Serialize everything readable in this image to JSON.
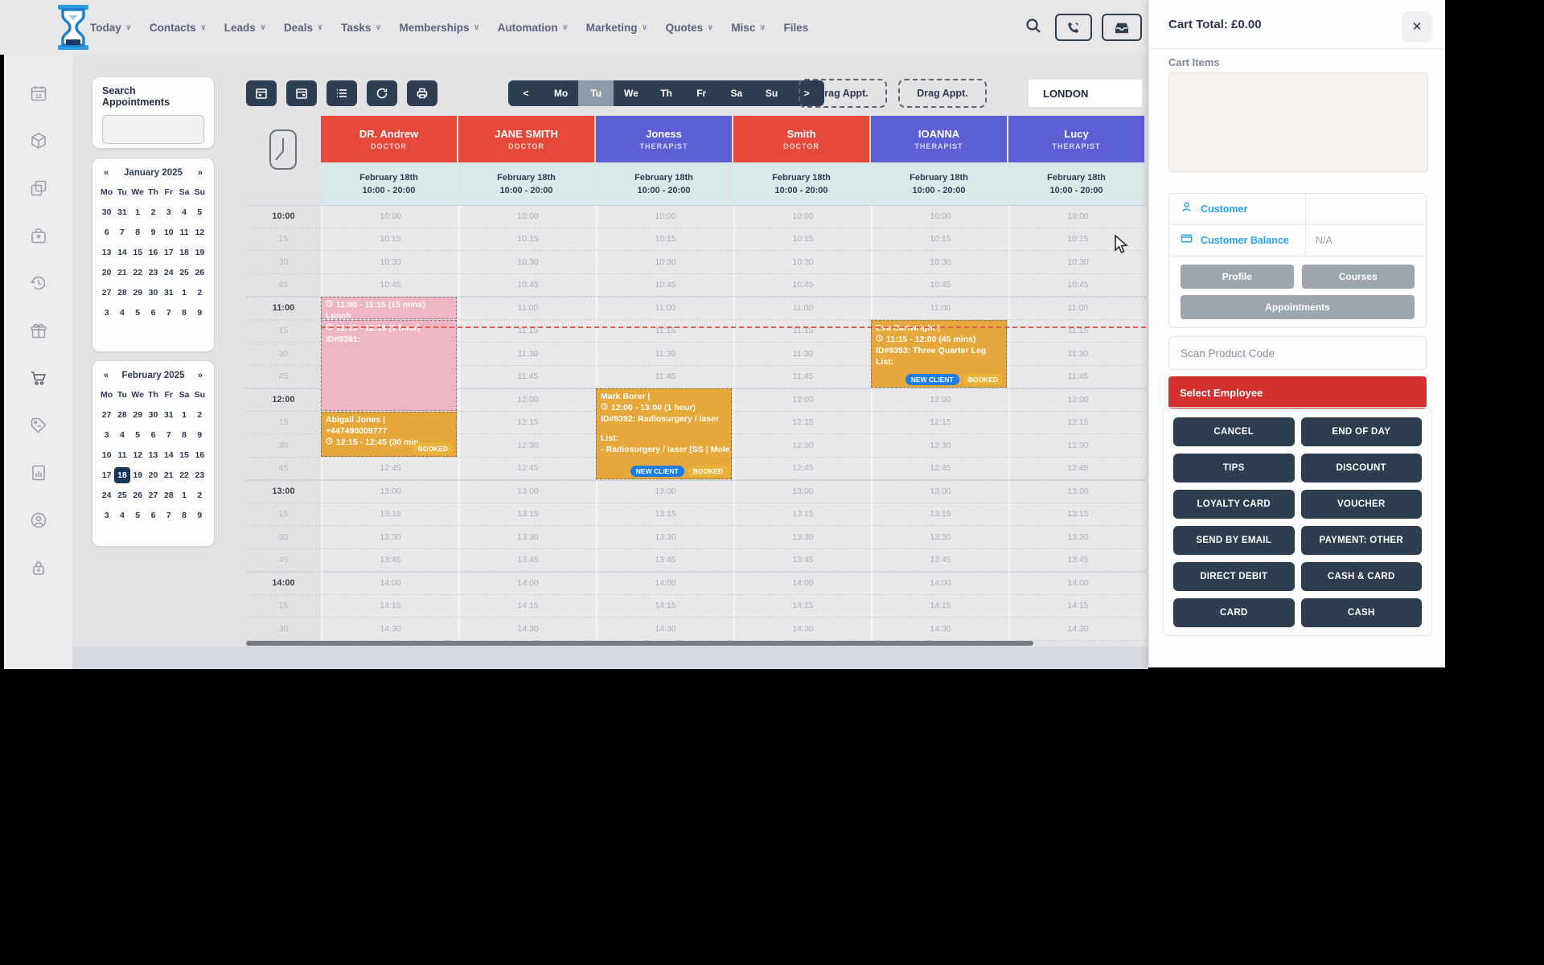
{
  "header": {
    "caret_glyph": "∨",
    "nav": [
      {
        "label": "Today",
        "dropdown": true
      },
      {
        "label": "Contacts",
        "dropdown": true
      },
      {
        "label": "Leads",
        "dropdown": true
      },
      {
        "label": "Deals",
        "dropdown": true
      },
      {
        "label": "Tasks",
        "dropdown": true
      },
      {
        "label": "Memberships",
        "dropdown": true
      },
      {
        "label": "Automation",
        "dropdown": true
      },
      {
        "label": "Marketing",
        "dropdown": true
      },
      {
        "label": "Quotes",
        "dropdown": true
      },
      {
        "label": "Misc",
        "dropdown": true
      },
      {
        "label": "Files",
        "dropdown": false
      }
    ],
    "icons": [
      "search-icon",
      "phone-icon",
      "inbox-icon"
    ]
  },
  "sidebar": {
    "icons": [
      "calendar-icon",
      "package-icon",
      "copy-icon",
      "bag-icon",
      "history-icon",
      "gift-icon",
      "cart-icon",
      "tag-icon",
      "report-icon",
      "account-icon",
      "lock-icon"
    ],
    "active": "cart-icon"
  },
  "search_panel": {
    "title": "Search Appointments",
    "input_value": ""
  },
  "mini_calendars": [
    {
      "month_label": "January 2025",
      "prev_glyph": "«",
      "next_glyph": "»",
      "day_names": [
        "Mo",
        "Tu",
        "We",
        "Th",
        "Fr",
        "Sa",
        "Su"
      ],
      "rows": [
        [
          30,
          31,
          1,
          2,
          3,
          4,
          5
        ],
        [
          6,
          7,
          8,
          9,
          10,
          11,
          12
        ],
        [
          13,
          14,
          15,
          16,
          17,
          18,
          19
        ],
        [
          20,
          21,
          22,
          23,
          24,
          25,
          26
        ],
        [
          27,
          28,
          29,
          30,
          31,
          1,
          2
        ],
        [
          3,
          4,
          5,
          6,
          7,
          8,
          9
        ]
      ],
      "selected": null
    },
    {
      "month_label": "February 2025",
      "prev_glyph": "«",
      "next_glyph": "»",
      "day_names": [
        "Mo",
        "Tu",
        "We",
        "Th",
        "Fr",
        "Sa",
        "Su"
      ],
      "rows": [
        [
          27,
          28,
          29,
          30,
          31,
          1,
          2
        ],
        [
          3,
          4,
          5,
          6,
          7,
          8,
          9
        ],
        [
          10,
          11,
          12,
          13,
          14,
          15,
          16
        ],
        [
          17,
          18,
          19,
          20,
          21,
          22,
          23
        ],
        [
          24,
          25,
          26,
          27,
          28,
          1,
          2
        ],
        [
          3,
          4,
          5,
          6,
          7,
          8,
          9
        ]
      ],
      "selected": {
        "row": 3,
        "col": 1
      }
    }
  ],
  "toolbar": {
    "icon_buttons": [
      "calendar-day-icon",
      "calendar-month-icon",
      "agenda-icon",
      "refresh-icon",
      "print-icon"
    ],
    "week_nav": {
      "prev": "<",
      "days": [
        "Mo",
        "Tu",
        "We",
        "Th",
        "Fr",
        "Sa",
        "Su"
      ],
      "active": "Tu",
      "next": ">"
    },
    "drag_buttons": [
      "Drag Appt.",
      "Drag Appt."
    ],
    "location": "LONDON"
  },
  "schedule": {
    "staff": [
      {
        "name": "DR. Andrew",
        "role": "DOCTOR",
        "color": "#e6493a"
      },
      {
        "name": "JANE SMITH",
        "role": "DOCTOR",
        "color": "#e6493a"
      },
      {
        "name": "Joness",
        "role": "THERAPIST",
        "color": "#5c5ed4"
      },
      {
        "name": "Smith",
        "role": "DOCTOR",
        "color": "#e6493a"
      },
      {
        "name": "IOANNA",
        "role": "THERAPIST",
        "color": "#5c5ed4"
      },
      {
        "name": "Lucy",
        "role": "THERAPIST",
        "color": "#5c5ed4"
      }
    ],
    "column_date": "February 18th",
    "column_hours": "10:00 - 20:00",
    "rows": [
      {
        "left": "10:00",
        "cell": "10:00",
        "hour": true
      },
      {
        "left": "15",
        "cell": "10:15",
        "hour": false
      },
      {
        "left": "30",
        "cell": "10:30",
        "hour": false
      },
      {
        "left": "45",
        "cell": "10:45",
        "hour": false
      },
      {
        "left": "11:00",
        "cell": "11:00",
        "hour": true
      },
      {
        "left": "15",
        "cell": "11:15",
        "hour": false
      },
      {
        "left": "30",
        "cell": "11:30",
        "hour": false
      },
      {
        "left": "45",
        "cell": "11:45",
        "hour": false
      },
      {
        "left": "12:00",
        "cell": "12:00",
        "hour": true
      },
      {
        "left": "15",
        "cell": "12:15",
        "hour": false
      },
      {
        "left": "30",
        "cell": "12:30",
        "hour": false
      },
      {
        "left": "45",
        "cell": "12:45",
        "hour": false
      },
      {
        "left": "13:00",
        "cell": "13:00",
        "hour": true
      },
      {
        "left": "15",
        "cell": "13:15",
        "hour": false
      },
      {
        "left": "30",
        "cell": "13:30",
        "hour": false
      },
      {
        "left": "45",
        "cell": "13:45",
        "hour": false
      },
      {
        "left": "14:00",
        "cell": "14:00",
        "hour": true
      },
      {
        "left": "15",
        "cell": "14:15",
        "hour": false
      },
      {
        "left": "30",
        "cell": "14:30",
        "hour": false
      }
    ],
    "appointments": [
      {
        "column": 0,
        "row_start": 4,
        "row_span": 1,
        "kind": "pink",
        "lines": [
          {
            "clock": true,
            "text": "11:00 - 11:15 (15 mins)"
          },
          {
            "clock": false,
            "text": "Lunch"
          }
        ],
        "badges": []
      },
      {
        "column": 0,
        "row_start": 5,
        "row_span": 4,
        "kind": "pink",
        "lines": [
          {
            "clock": true,
            "text": "11:15 - 12:15 (1 hour)"
          },
          {
            "clock": false,
            "text": "ID#9391:"
          }
        ],
        "badges": []
      },
      {
        "column": 0,
        "row_start": 9,
        "row_span": 2,
        "kind": "orange",
        "lines": [
          {
            "clock": false,
            "text": "Abigail Jones |"
          },
          {
            "clock": false,
            "text": "+447490009777"
          },
          {
            "clock": true,
            "text": "12:15 - 12:45 (30 min"
          }
        ],
        "badges": [
          {
            "label": "BOOKED",
            "type": "booked"
          }
        ]
      },
      {
        "column": 2,
        "row_start": 8,
        "row_span": 4,
        "kind": "orange",
        "lines": [
          {
            "clock": false,
            "text": "Mark Borer |"
          },
          {
            "clock": true,
            "text": "12:00 - 13:00 (1 hour)"
          },
          {
            "clock": false,
            "text": "ID#9392: Radiosurgery / laser"
          },
          {
            "clock": false,
            "text": ""
          },
          {
            "clock": false,
            "text": "List:"
          },
          {
            "clock": false,
            "text": "- Radiosurgery / laser [SS | Mole Removal]"
          }
        ],
        "badges": [
          {
            "label": "NEW CLIENT",
            "type": "new-client"
          },
          {
            "label": "BOOKED",
            "type": "booked"
          }
        ]
      },
      {
        "column": 4,
        "row_start": 5,
        "row_span": 3,
        "kind": "orange",
        "lines": [
          {
            "clock": false,
            "text": "Eva Cartwright |"
          },
          {
            "clock": true,
            "text": "11:15 - 12:00 (45 mins)"
          },
          {
            "clock": false,
            "text": "ID#9393: Three Quarter Leg"
          },
          {
            "clock": false,
            "text": "List:"
          }
        ],
        "badges": [
          {
            "label": "NEW CLIENT",
            "type": "new-client"
          },
          {
            "label": "BOOKED",
            "type": "booked"
          }
        ]
      }
    ],
    "colors": {
      "pink": "#efb7c4",
      "orange": "#e6a83b",
      "badge_new_client": "#1d7de2",
      "badge_booked": "#ecb339",
      "current_time_line": "#e05b52"
    }
  },
  "cart": {
    "title": "Cart Total: £0.00",
    "close_glyph": "✕",
    "items_label": "Cart Items",
    "customer_label": "Customer",
    "balance_label": "Customer Balance",
    "balance_value": "N/A",
    "profile_button": "Profile",
    "courses_button": "Courses",
    "appointments_button": "Appointments",
    "scan_placeholder": "Scan Product Code",
    "select_employee_button": "Select Employee",
    "action_buttons": [
      "CANCEL",
      "END OF DAY",
      "TIPS",
      "DISCOUNT",
      "LOYALTY CARD",
      "VOUCHER",
      "SEND BY EMAIL",
      "PAYMENT: OTHER",
      "DIRECT DEBIT",
      "CASH & CARD",
      "CARD",
      "CASH"
    ]
  }
}
